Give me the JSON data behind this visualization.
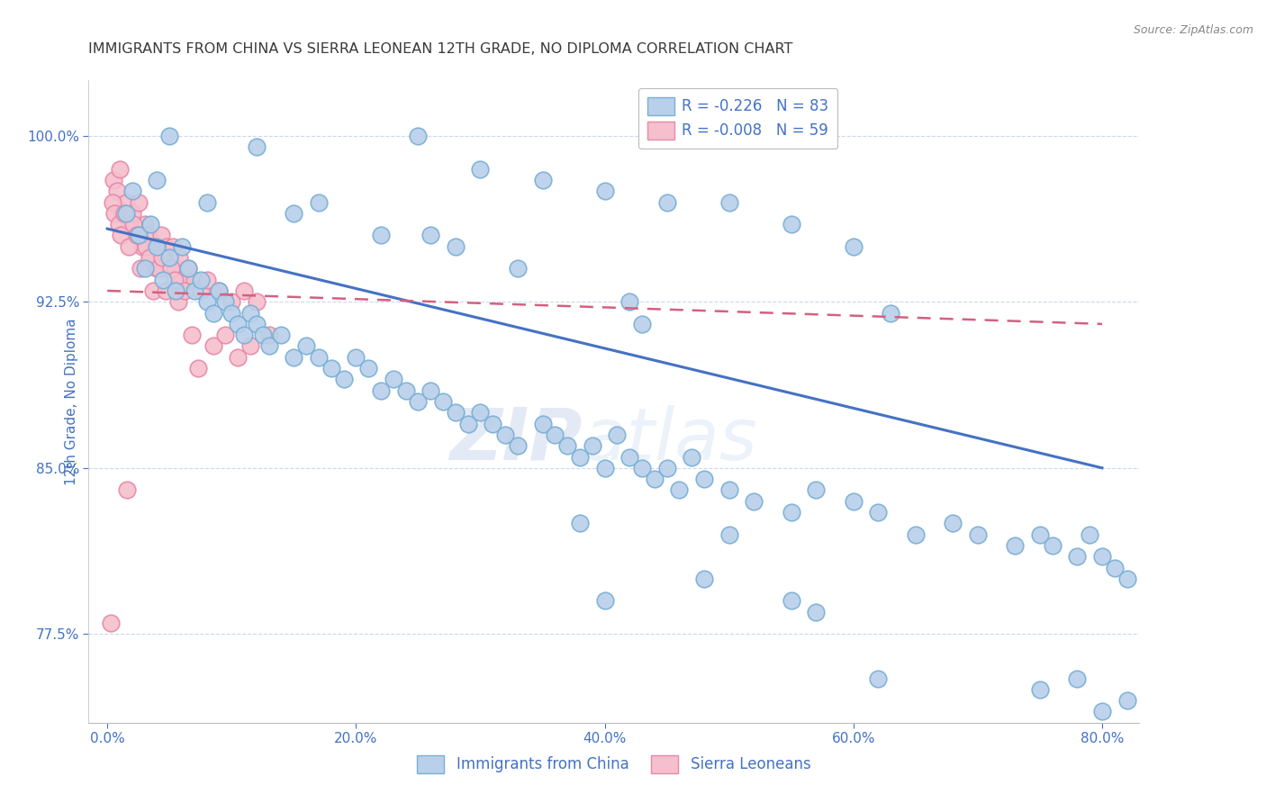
{
  "title": "IMMIGRANTS FROM CHINA VS SIERRA LEONEAN 12TH GRADE, NO DIPLOMA CORRELATION CHART",
  "source": "Source: ZipAtlas.com",
  "ylabel": "12th Grade, No Diploma",
  "x_tick_vals": [
    0.0,
    20.0,
    40.0,
    60.0,
    80.0
  ],
  "x_tick_labels": [
    "0.0%",
    "20.0%",
    "40.0%",
    "60.0%",
    "80.0%"
  ],
  "y_tick_vals": [
    77.5,
    85.0,
    92.5,
    100.0
  ],
  "y_tick_labels": [
    "77.5%",
    "85.0%",
    "92.5%",
    "100.0%"
  ],
  "xlim": [
    -1.5,
    83
  ],
  "ylim": [
    73.5,
    102.5
  ],
  "china_color": "#b8d0ea",
  "china_edge_color": "#7aafd4",
  "sierra_color": "#f5bfce",
  "sierra_edge_color": "#e888a8",
  "trend_china_color": "#4472c4",
  "trend_sierra_color": "#d46080",
  "background_color": "#ffffff",
  "grid_color": "#c8d4e8",
  "title_color": "#3a3a3a",
  "axis_label_color": "#4472c4",
  "tick_color": "#4472c4",
  "source_color": "#888888",
  "legend_top_label1": "R = -0.226   N = 83",
  "legend_top_label2": "R = -0.008   N = 59",
  "legend_bot_label1": "Immigrants from China",
  "legend_bot_label2": "Sierra Leoneans",
  "watermark_zip": "ZIP",
  "watermark_atlas": "atlas",
  "china_x": [
    1.5,
    2.0,
    2.5,
    3.0,
    3.5,
    4.0,
    4.5,
    5.0,
    5.5,
    6.0,
    6.5,
    7.0,
    7.5,
    8.0,
    8.5,
    9.0,
    9.5,
    10.0,
    10.5,
    11.0,
    11.5,
    12.0,
    12.5,
    13.0,
    14.0,
    15.0,
    16.0,
    17.0,
    18.0,
    19.0,
    20.0,
    21.0,
    22.0,
    23.0,
    24.0,
    25.0,
    26.0,
    27.0,
    28.0,
    29.0,
    30.0,
    31.0,
    32.0,
    33.0,
    35.0,
    36.0,
    37.0,
    38.0,
    39.0,
    40.0,
    41.0,
    42.0,
    43.0,
    44.0,
    45.0,
    46.0,
    47.0,
    48.0,
    50.0,
    52.0,
    55.0,
    57.0,
    60.0,
    62.0,
    65.0,
    68.0,
    70.0,
    73.0,
    75.0,
    76.0,
    78.0,
    79.0,
    80.0,
    81.0,
    82.0,
    42.0,
    43.0,
    63.0,
    17.0,
    26.0,
    38.0,
    50.0,
    57.0
  ],
  "china_y": [
    96.5,
    97.5,
    95.5,
    94.0,
    96.0,
    95.0,
    93.5,
    94.5,
    93.0,
    95.0,
    94.0,
    93.0,
    93.5,
    92.5,
    92.0,
    93.0,
    92.5,
    92.0,
    91.5,
    91.0,
    92.0,
    91.5,
    91.0,
    90.5,
    91.0,
    90.0,
    90.5,
    90.0,
    89.5,
    89.0,
    90.0,
    89.5,
    88.5,
    89.0,
    88.5,
    88.0,
    88.5,
    88.0,
    87.5,
    87.0,
    87.5,
    87.0,
    86.5,
    86.0,
    87.0,
    86.5,
    86.0,
    85.5,
    86.0,
    85.0,
    86.5,
    85.5,
    85.0,
    84.5,
    85.0,
    84.0,
    85.5,
    84.5,
    84.0,
    83.5,
    83.0,
    84.0,
    83.5,
    83.0,
    82.0,
    82.5,
    82.0,
    81.5,
    82.0,
    81.5,
    81.0,
    82.0,
    81.0,
    80.5,
    80.0,
    92.5,
    91.5,
    92.0,
    97.0,
    95.5,
    82.5,
    82.0,
    78.5
  ],
  "china_y_outliers_x": [
    5.0,
    12.0,
    25.0,
    30.0,
    35.0,
    40.0,
    45.0,
    50.0,
    55.0,
    60.0,
    4.0,
    8.0,
    15.0,
    22.0,
    28.0,
    33.0,
    40.0,
    48.0,
    55.0,
    62.0,
    75.0,
    80.0,
    78.0,
    82.0
  ],
  "china_y_outliers_y": [
    100.0,
    99.5,
    100.0,
    98.5,
    98.0,
    97.5,
    97.0,
    97.0,
    96.0,
    95.0,
    98.0,
    97.0,
    96.5,
    95.5,
    95.0,
    94.0,
    79.0,
    80.0,
    79.0,
    75.5,
    75.0,
    74.0,
    75.5,
    74.5
  ],
  "sierra_x": [
    0.5,
    0.8,
    1.0,
    1.2,
    1.5,
    1.8,
    2.0,
    2.3,
    2.5,
    2.8,
    3.0,
    3.3,
    3.5,
    3.8,
    4.0,
    4.3,
    4.5,
    4.8,
    5.0,
    5.3,
    5.5,
    5.8,
    6.0,
    6.5,
    7.0,
    7.5,
    8.0,
    9.0,
    10.0,
    11.0,
    12.0,
    0.4,
    0.6,
    0.9,
    1.1,
    1.4,
    1.7,
    2.1,
    2.4,
    2.7,
    3.1,
    3.4,
    3.7,
    4.1,
    4.4,
    4.7,
    5.1,
    5.4,
    5.7,
    6.2,
    6.8,
    7.3,
    8.5,
    9.5,
    10.5,
    11.5,
    13.0,
    0.3,
    1.6
  ],
  "sierra_y": [
    98.0,
    97.5,
    98.5,
    96.5,
    97.0,
    96.0,
    96.5,
    95.5,
    97.0,
    95.0,
    96.0,
    95.5,
    94.5,
    95.0,
    94.0,
    95.5,
    94.0,
    95.0,
    94.5,
    95.0,
    94.0,
    94.5,
    93.5,
    94.0,
    93.5,
    93.0,
    93.5,
    93.0,
    92.5,
    93.0,
    92.5,
    97.0,
    96.5,
    96.0,
    95.5,
    96.5,
    95.0,
    96.0,
    95.5,
    94.0,
    95.0,
    94.5,
    93.0,
    94.0,
    94.5,
    93.0,
    94.0,
    93.5,
    92.5,
    93.0,
    91.0,
    89.5,
    90.5,
    91.0,
    90.0,
    90.5,
    91.0,
    78.0,
    84.0
  ]
}
